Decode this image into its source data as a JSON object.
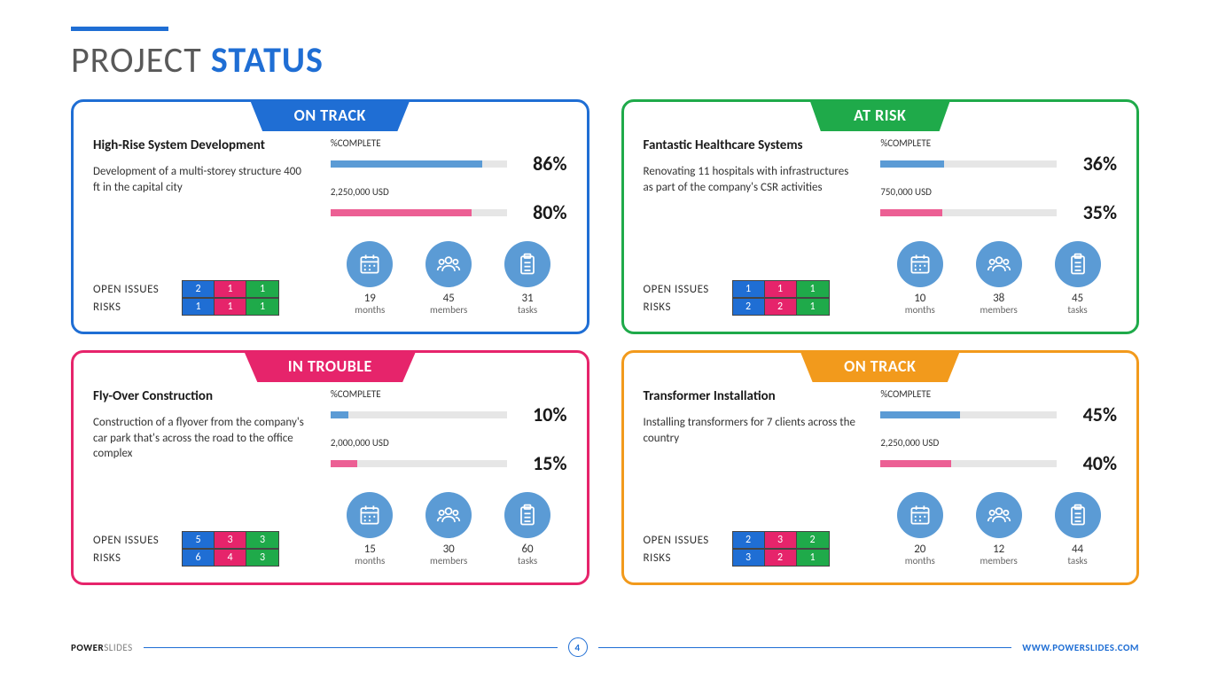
{
  "title": {
    "prefix": "PROJECT",
    "suffix": "STATUS"
  },
  "colors": {
    "blue": "#1f6ed4",
    "green": "#1faa4a",
    "pink": "#e6246b",
    "orange": "#f29a1c",
    "bar_complete": "#5b9bd5",
    "bar_budget": "#ec5f94",
    "bar_track": "#e6e6e6",
    "icon_bg": "#5b9bd5",
    "cell_blue": "#1f6ed4",
    "cell_pink": "#e6246b",
    "cell_green": "#1faa4a"
  },
  "labels": {
    "open_issues": "OPEN ISSUES",
    "risks": "RISKS",
    "complete": "%COMPLETE",
    "months": "months",
    "members": "members",
    "tasks": "tasks"
  },
  "cards": [
    {
      "status": "ON TRACK",
      "border": "#1f6ed4",
      "tab": "#1f6ed4",
      "name": "High-Rise System Development",
      "desc": "Development of a multi-storey structure 400 ft in the capital city",
      "complete_pct": 86,
      "budget_label": "2,250,000 USD",
      "budget_pct": 80,
      "issues": [
        2,
        1,
        1
      ],
      "risks": [
        1,
        1,
        1
      ],
      "months": 19,
      "members": 45,
      "tasks": 31
    },
    {
      "status": "AT RISK",
      "border": "#1faa4a",
      "tab": "#1faa4a",
      "name": "Fantastic Healthcare Systems",
      "desc": "Renovating 11 hospitals with infrastructures as part of the company's CSR activities",
      "complete_pct": 36,
      "budget_label": "750,000 USD",
      "budget_pct": 35,
      "issues": [
        1,
        1,
        1
      ],
      "risks": [
        2,
        2,
        1
      ],
      "months": 10,
      "members": 38,
      "tasks": 45
    },
    {
      "status": "IN TROUBLE",
      "border": "#e6246b",
      "tab": "#e6246b",
      "name": "Fly-Over Construction",
      "desc": "Construction of a flyover from the company's car park that's across the road to the office complex",
      "complete_pct": 10,
      "budget_label": "2,000,000 USD",
      "budget_pct": 15,
      "issues": [
        5,
        3,
        3
      ],
      "risks": [
        6,
        4,
        3
      ],
      "months": 15,
      "members": 30,
      "tasks": 60
    },
    {
      "status": "ON TRACK",
      "border": "#f29a1c",
      "tab": "#f29a1c",
      "name": "Transformer Installation",
      "desc": "Installing transformers for 7 clients across the country",
      "complete_pct": 45,
      "budget_label": "2,250,000 USD",
      "budget_pct": 40,
      "issues": [
        2,
        3,
        2
      ],
      "risks": [
        3,
        2,
        1
      ],
      "months": 20,
      "members": 12,
      "tasks": 44
    }
  ],
  "footer": {
    "brand_bold": "POWER",
    "brand_light": "SLIDES",
    "page": "4",
    "url": "WWW.POWERSLIDES.COM"
  }
}
